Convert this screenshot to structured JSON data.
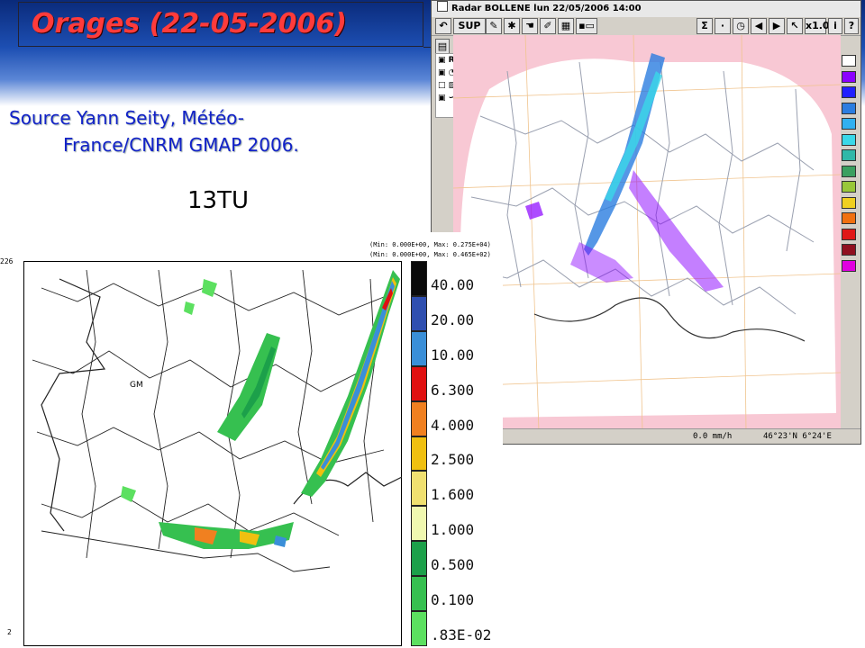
{
  "slide": {
    "title": "Orages (22-05-2006)",
    "source_line1": "Source Yann Seity, Météo-",
    "source_line2": "France/CNRM GMAP 2006.",
    "time_label": "13TU"
  },
  "radar_window": {
    "title": "Radar BOLLENE lun 22/05/2006 14:00",
    "toolbar": {
      "sup_label": "SUP",
      "sigma_label": "Σ",
      "zoom_label": "x1.0",
      "info_label": "i",
      "help_label": "?"
    },
    "layer_label": "Rada",
    "status_rain": "0.0   mm/h",
    "status_coord": "46°23'N 6°24'E",
    "palette_colors": [
      "#ffffff",
      "#8a00ff",
      "#2020ff",
      "#2a7de0",
      "#30b0f0",
      "#39d8e8",
      "#2fb8a8",
      "#3aa060",
      "#98c83a",
      "#f0d020",
      "#f07010",
      "#e01818",
      "#901020",
      "#e000e0"
    ],
    "colors": {
      "domain_outside": "#f8c8d4",
      "map_bg": "#ffffff",
      "border_line": "#9aa0b0",
      "coast_line": "#202020"
    }
  },
  "model_figure": {
    "header_min1": "(Min: 0.000E+00, Max: 0.275E+04)",
    "header_min2": "(Min: 0.000E+00, Max: 0.465E+02)",
    "corner_top": "226",
    "corner_bottom": "2",
    "map_label": "GM",
    "legend": [
      {
        "label": "40.00",
        "color": "#0a0a0a"
      },
      {
        "label": "20.00",
        "color": "#2f4fb0"
      },
      {
        "label": "10.00",
        "color": "#3a8fd8"
      },
      {
        "label": "6.300",
        "color": "#e01010"
      },
      {
        "label": "4.000",
        "color": "#f08020"
      },
      {
        "label": "2.500",
        "color": "#f0c010"
      },
      {
        "label": "1.600",
        "color": "#f0e070"
      },
      {
        "label": "1.000",
        "color": "#f0f8b0"
      },
      {
        "label": "0.500",
        "color": "#1ca04a"
      },
      {
        "label": "0.100",
        "color": "#36c050"
      },
      {
        "label": ".83E-02",
        "color": "#5ce060"
      }
    ]
  }
}
